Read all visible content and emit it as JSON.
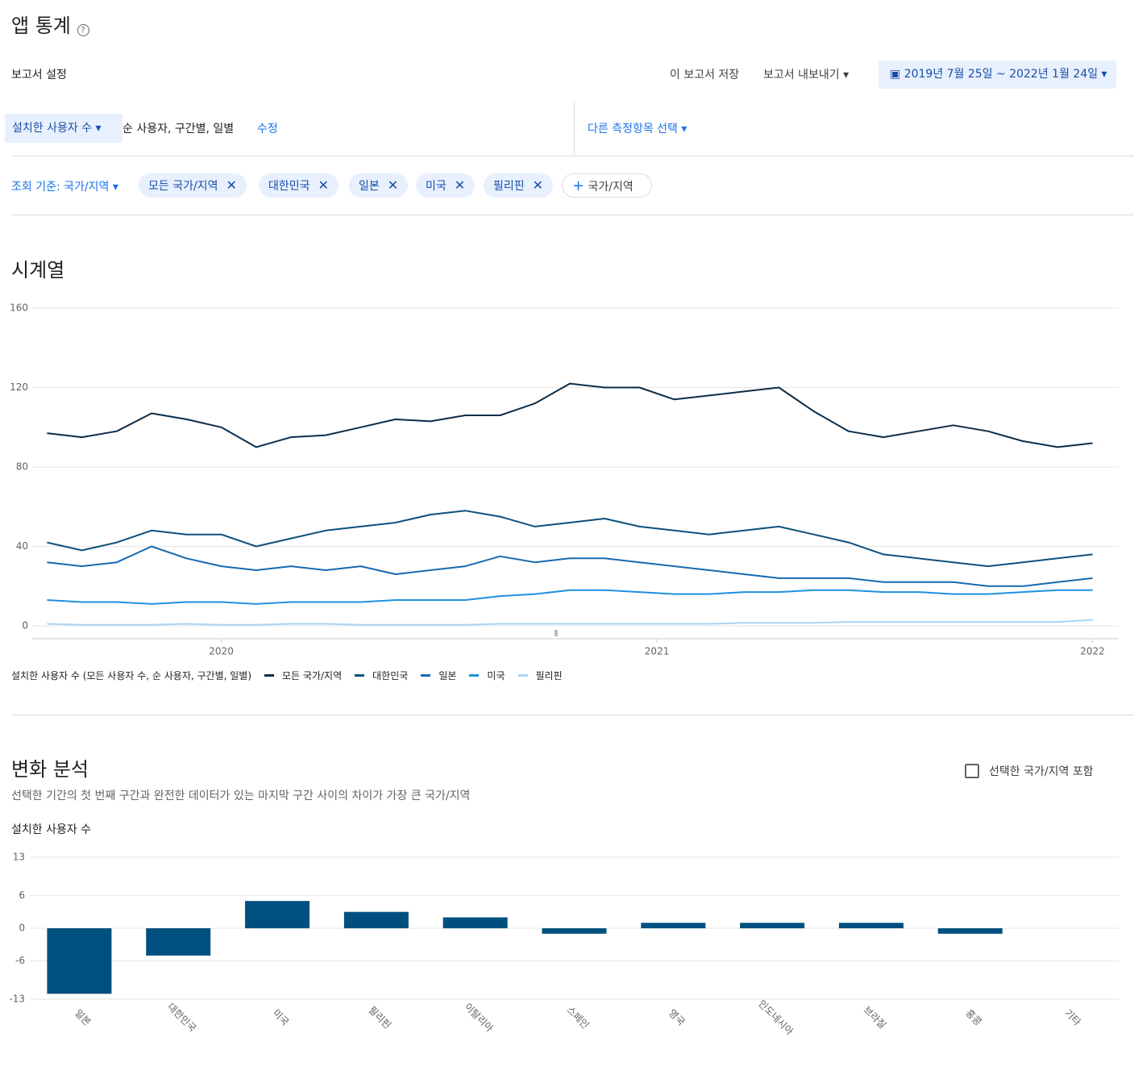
{
  "header": {
    "title": "앱 통계",
    "report_settings": "보고서 설정",
    "save": "이 보고서 저장",
    "export": "보고서 내보내기",
    "date_range": "2019년 7월 25일 ~ 2022년 1월 24일"
  },
  "metric": {
    "name": "설치한 사용자 수",
    "detail": "순 사용자, 구간별, 일별",
    "edit": "수정",
    "other": "다른 측정항목 선택"
  },
  "filter": {
    "label": "조회 기준: 국가/지역",
    "chips": [
      "모든 국가/지역",
      "대한민국",
      "일본",
      "미국",
      "필리핀"
    ],
    "add": "국가/지역"
  },
  "sections": {
    "timeseries": "시계열",
    "change": "변화 분석",
    "change_desc": "선택한 기간의 첫 번째 구간과 완전한 데이터가 있는 마지막 구간 사이의 차이가 가장 큰 국가/지역",
    "include": "선택한 국가/지역 포함"
  },
  "chart_data": [
    {
      "type": "line",
      "legend_title": "설치한 사용자 수 (모든 사용자 수, 순 사용자, 구간별, 일별)",
      "x": [
        2019.6,
        2019.68,
        2019.76,
        2019.84,
        2019.92,
        2020.0,
        2020.08,
        2020.16,
        2020.24,
        2020.32,
        2020.4,
        2020.48,
        2020.56,
        2020.64,
        2020.72,
        2020.8,
        2020.88,
        2020.96,
        2021.04,
        2021.12,
        2021.2,
        2021.28,
        2021.36,
        2021.44,
        2021.52,
        2021.6,
        2021.68,
        2021.76,
        2021.84,
        2021.92,
        2022.0
      ],
      "xlim": [
        2019.566,
        2022.06
      ],
      "xticks": [
        2020,
        2021,
        2022
      ],
      "ylim": [
        0,
        160
      ],
      "yticks": [
        0,
        40,
        80,
        120,
        160
      ],
      "grid": true,
      "series": [
        {
          "name": "모든 국가/지역",
          "color": "#0d2d48",
          "values": [
            97,
            95,
            98,
            107,
            104,
            100,
            90,
            95,
            96,
            100,
            104,
            103,
            106,
            106,
            112,
            122,
            120,
            120,
            114,
            116,
            118,
            120,
            108,
            98,
            95,
            98,
            101,
            98,
            93,
            90,
            92
          ]
        },
        {
          "name": "대한민국",
          "color": "#0e4f7d",
          "values": [
            42,
            38,
            42,
            48,
            46,
            46,
            40,
            44,
            48,
            50,
            52,
            56,
            58,
            55,
            50,
            52,
            54,
            50,
            48,
            46,
            48,
            50,
            46,
            42,
            36,
            34,
            32,
            30,
            32,
            34,
            36
          ]
        },
        {
          "name": "일본",
          "color": "#1769b0",
          "values": [
            32,
            30,
            32,
            40,
            34,
            30,
            28,
            30,
            28,
            30,
            26,
            28,
            30,
            35,
            32,
            34,
            34,
            32,
            30,
            28,
            26,
            24,
            24,
            24,
            22,
            22,
            22,
            20,
            20,
            22,
            24
          ]
        },
        {
          "name": "미국",
          "color": "#1e90df",
          "values": [
            13,
            12,
            12,
            11,
            12,
            12,
            11,
            12,
            12,
            12,
            13,
            13,
            13,
            15,
            16,
            18,
            18,
            17,
            16,
            16,
            17,
            17,
            18,
            18,
            17,
            17,
            16,
            16,
            17,
            18,
            18
          ]
        },
        {
          "name": "필리핀",
          "color": "#a9d4f5",
          "values": [
            1,
            0.5,
            0.5,
            0.5,
            1,
            0.5,
            0.5,
            1,
            1,
            0.5,
            0.5,
            0.5,
            0.5,
            1,
            1,
            1,
            1,
            1,
            1,
            1,
            1.5,
            1.5,
            1.5,
            2,
            2,
            2,
            2,
            2,
            2,
            2,
            3
          ]
        }
      ]
    },
    {
      "type": "bar",
      "title": "설치한 사용자 수",
      "categories": [
        "일본",
        "대한민국",
        "미국",
        "필리핀",
        "이탈리아",
        "스페인",
        "영국",
        "인도네시아",
        "브라질",
        "홍콩",
        "기타"
      ],
      "values": [
        -12,
        -5,
        5,
        3,
        2,
        -1,
        1,
        1,
        1,
        -1,
        0
      ],
      "color": "#00507f",
      "ylim": [
        -13,
        13
      ],
      "yticks": [
        -13,
        -6,
        0,
        6,
        13
      ],
      "grid": true
    }
  ]
}
